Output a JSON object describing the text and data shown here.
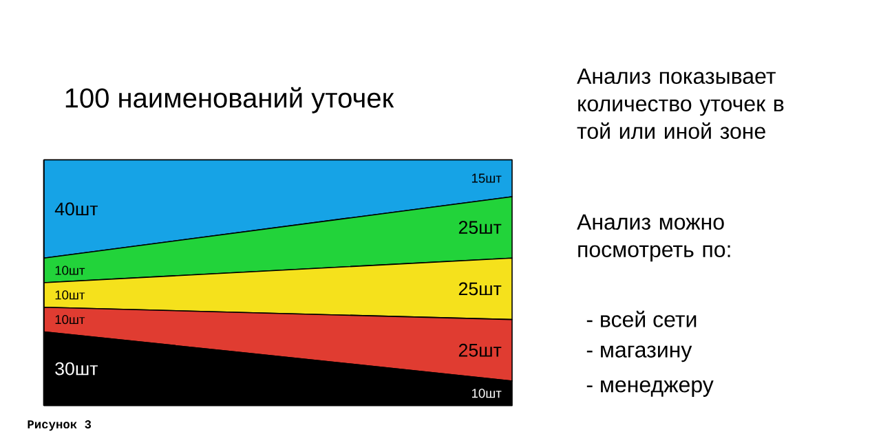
{
  "chart_data": {
    "type": "area",
    "stacked": true,
    "title": "100 наименований уточек",
    "categories": [
      null,
      null
    ],
    "ylim": [
      0,
      100
    ],
    "series": [
      {
        "color": "#000000",
        "values": [
          30,
          10
        ],
        "value_labels": [
          "30шт",
          "10шт"
        ]
      },
      {
        "color": "#e03c31",
        "values": [
          10,
          25
        ],
        "value_labels": [
          "10шт",
          "25шт"
        ]
      },
      {
        "color": "#f5e11c",
        "values": [
          10,
          25
        ],
        "value_labels": [
          "10шт",
          "25шт"
        ]
      },
      {
        "color": "#22d33a",
        "values": [
          10,
          25
        ],
        "value_labels": [
          "10шт",
          "25шт"
        ]
      },
      {
        "color": "#16a3e6",
        "values": [
          40,
          15
        ],
        "value_labels": [
          "40шт",
          "15шт"
        ]
      }
    ],
    "annotations": [
      "Анализ показывает количество уточек в той или иной зоне",
      "Анализ можно посмотреть по:",
      "- всей сети",
      "- магазину",
      "- менеджеру",
      "Рисунок 3"
    ]
  }
}
